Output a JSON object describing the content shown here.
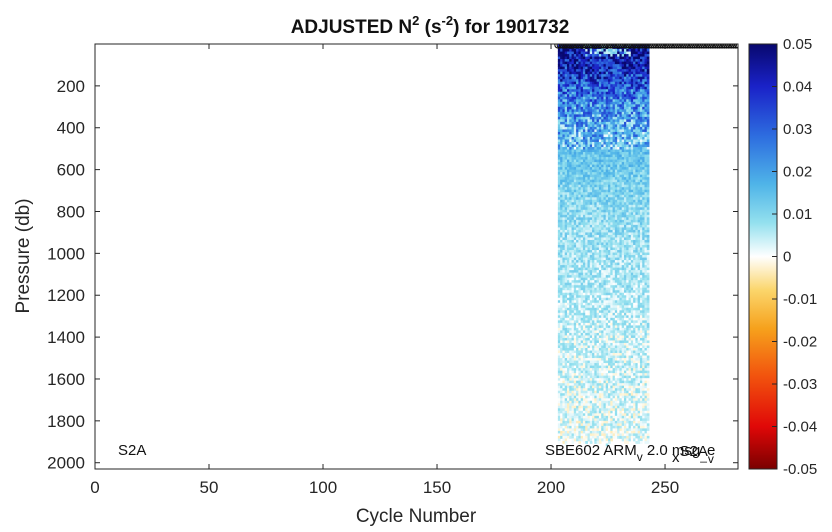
{
  "chart_data": {
    "type": "heatmap",
    "title": {
      "prefix": "ADJUSTED N",
      "sup1": "2",
      "mid": " (s",
      "sup2": "-2",
      "suffix": ") for 1901732"
    },
    "xlabel": "Cycle Number",
    "ylabel": "Pressure (db)",
    "xlim": [
      0,
      282
    ],
    "ylim": [
      0,
      2030
    ],
    "y_reversed": true,
    "x_ticks": [
      0,
      50,
      100,
      150,
      200,
      250
    ],
    "x_tick_labels": [
      "0",
      "50",
      "100",
      "150",
      "200",
      "250"
    ],
    "y_ticks": [
      200,
      400,
      600,
      800,
      1000,
      1200,
      1400,
      1600,
      1800,
      2000
    ],
    "y_tick_labels": [
      "200",
      "400",
      "600",
      "800",
      "1000",
      "1200",
      "1400",
      "1600",
      "1800",
      "2000"
    ],
    "colorbar": {
      "range": [
        -0.05,
        0.05
      ],
      "ticks": [
        0.05,
        0.04,
        0.03,
        0.02,
        0.01,
        0,
        -0.01,
        -0.02,
        -0.03,
        -0.04,
        -0.05
      ],
      "tick_labels": [
        "0.05",
        "0.04",
        "0.03",
        "0.02",
        "0.01",
        "0",
        "-0.01",
        "-0.02",
        "-0.03",
        "-0.04",
        "-0.05"
      ],
      "colormap": "diverging blue-cyan-white-yellow-red",
      "colors": {
        "max": "#08086e",
        "high": "#1f3dd4",
        "mid_high": "#4fa8e8",
        "low_pos": "#a9e8ee",
        "zero": "#ffffff",
        "low_neg": "#f5c23a",
        "mid_neg": "#f57f0f",
        "high_neg": "#ee1010",
        "min": "#7a0000"
      }
    },
    "data_region": {
      "cycle_range": [
        203,
        243
      ],
      "pressure_range": [
        0,
        1900
      ],
      "description_profile": [
        {
          "pressure": 0,
          "value": 0.045
        },
        {
          "pressure": 100,
          "value": 0.04
        },
        {
          "pressure": 200,
          "value": 0.03
        },
        {
          "pressure": 300,
          "value": 0.022
        },
        {
          "pressure": 400,
          "value": 0.017
        },
        {
          "pressure": 600,
          "value": 0.012
        },
        {
          "pressure": 800,
          "value": 0.009
        },
        {
          "pressure": 1000,
          "value": 0.007
        },
        {
          "pressure": 1400,
          "value": 0.004
        },
        {
          "pressure": 1900,
          "value": 0.002
        }
      ]
    },
    "surface_markers": {
      "cycle_range": [
        203,
        282
      ],
      "pressure": 5,
      "marker": "open-circle"
    },
    "annotations": {
      "left": "S2A",
      "right": {
        "a": "SBE602 ARM",
        "a_sub": "v",
        "b": " 2.0 msg",
        "b_sub": "_",
        "c": "e",
        "overlay": "S2A",
        "overlay_sub1": "x",
        "overlay_mid": "S2A",
        "overlay_sub2": "v"
      }
    },
    "grid": false,
    "legend": "none"
  }
}
